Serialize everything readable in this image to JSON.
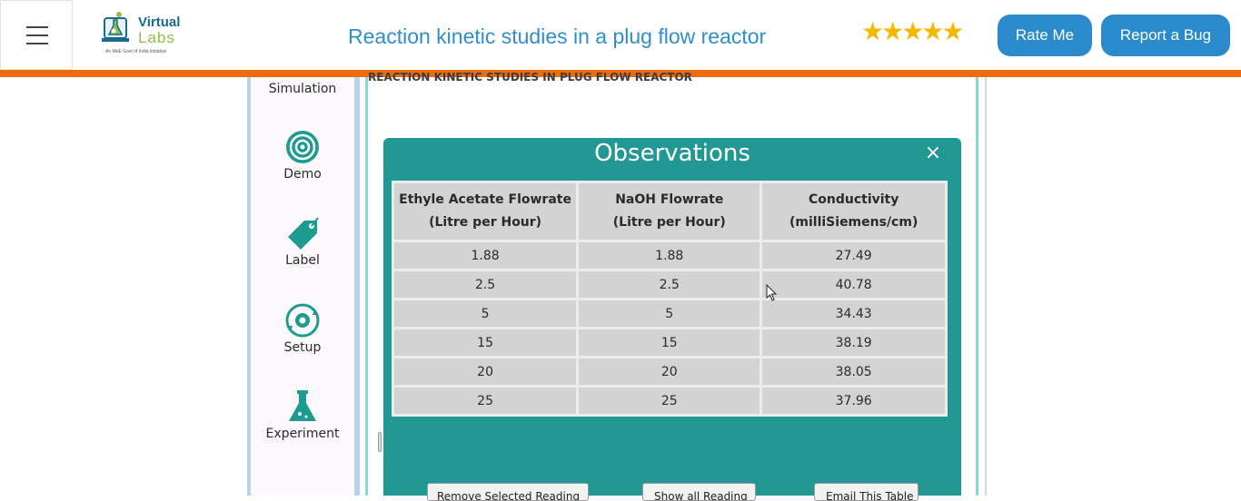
{
  "header": {
    "logo": {
      "name": "Virtual Labs",
      "line1": "Virtual",
      "line2": "Labs",
      "tagline": "An MoE Govt of India Initiative"
    },
    "title": "Reaction kinetic studies in a plug flow reactor",
    "rating": {
      "stars": 5,
      "max": 5,
      "glyphs": "★★★★★"
    },
    "rate_label": "Rate Me",
    "bug_label": "Report a Bug",
    "accent_color": "#ed6b0f"
  },
  "sidebar": {
    "items": [
      {
        "label": "Simulation",
        "icon": "simulation-icon"
      },
      {
        "label": "Demo",
        "icon": "target-icon"
      },
      {
        "label": "Label",
        "icon": "tag-icon"
      },
      {
        "label": "Setup",
        "icon": "gear-cycle-icon"
      },
      {
        "label": "Experiment",
        "icon": "flask-icon"
      }
    ]
  },
  "main": {
    "heading": "REACTION KINETIC STUDIES IN PLUG FLOW REACTOR"
  },
  "modal": {
    "title": "Observations",
    "close_glyph": "×",
    "headers": [
      [
        "Ethyle Acetate Flowrate",
        "(Litre per Hour)"
      ],
      [
        "NaOH Flowrate",
        "(Litre per Hour)"
      ],
      [
        "Conductivity",
        "(milliSiemens/cm)"
      ]
    ],
    "rows": [
      [
        "1.88",
        "1.88",
        "27.49"
      ],
      [
        "2.5",
        "2.5",
        "40.78"
      ],
      [
        "5",
        "5",
        "34.43"
      ],
      [
        "15",
        "15",
        "38.19"
      ],
      [
        "20",
        "20",
        "38.05"
      ],
      [
        "25",
        "25",
        "37.96"
      ]
    ],
    "buttons": [
      "Remove Selected Reading",
      "Show all Reading",
      "Email This Table"
    ]
  },
  "colors": {
    "modal_bg": "#229894",
    "title_blue": "#2f8fc8",
    "button_blue": "#2b8acb",
    "star": "#f5b800"
  }
}
